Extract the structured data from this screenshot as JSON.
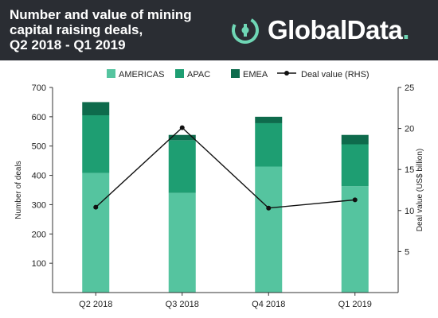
{
  "header": {
    "title_lines": [
      "Number and value of mining",
      "capital raising deals,",
      "Q2 2018 - Q1 2019"
    ],
    "brand_name": "GlobalData",
    "brand_dot": ".",
    "brand_icon": "globaldata-logo-icon"
  },
  "colors": {
    "header_bg": "#2a2d33",
    "americas": "#55c49f",
    "apac": "#1e9e72",
    "emea": "#0e6b4c",
    "deal_line": "#111111",
    "logo_accent": "#6fd6b5"
  },
  "chart_data": {
    "type": "bar",
    "stacked": true,
    "categories": [
      "Q2 2018",
      "Q3 2018",
      "Q4 2018",
      "Q1 2019"
    ],
    "series": [
      {
        "name": "AMERICAS",
        "values": [
          408,
          340,
          430,
          363
        ]
      },
      {
        "name": "APAC",
        "values": [
          197,
          180,
          148,
          143
        ]
      },
      {
        "name": "EMEA",
        "values": [
          45,
          18,
          22,
          32
        ]
      }
    ],
    "line_series": {
      "name": "Deal value (RHS)",
      "values": [
        10.4,
        20.1,
        10.3,
        11.3
      ]
    },
    "legend": [
      "AMERICAS",
      "APAC",
      "EMEA",
      "Deal value (RHS)"
    ],
    "legend_position": "top",
    "ylabel": "Number of deals",
    "y2label": "Deal value (US$ billion)",
    "ylim": [
      0,
      700
    ],
    "yticks": [
      "700",
      "600",
      "500",
      "400",
      "300",
      "200",
      "100"
    ],
    "y2lim": [
      0,
      25
    ],
    "y2ticks": [
      "25",
      "20",
      "15",
      "10",
      "5"
    ],
    "grid": false
  }
}
